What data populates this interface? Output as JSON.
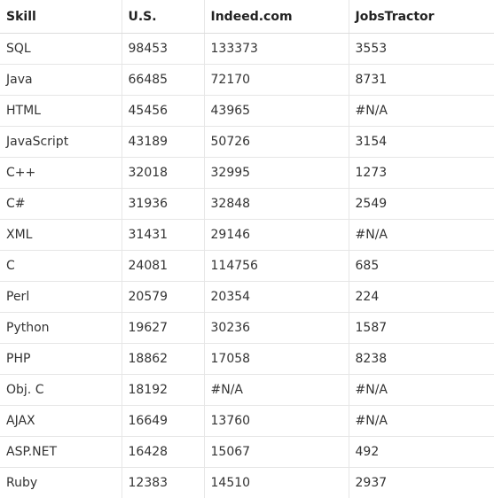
{
  "table": {
    "headers": [
      "Skill",
      "U.S.",
      "Indeed.com",
      "JobsTractor"
    ],
    "rows": [
      [
        "SQL",
        "98453",
        "133373",
        "3553"
      ],
      [
        "Java",
        "66485",
        "72170",
        "8731"
      ],
      [
        "HTML",
        "45456",
        "43965",
        "#N/A"
      ],
      [
        "JavaScript",
        "43189",
        "50726",
        "3154"
      ],
      [
        "C++",
        "32018",
        "32995",
        "1273"
      ],
      [
        "C#",
        "31936",
        "32848",
        "2549"
      ],
      [
        "XML",
        "31431",
        "29146",
        "#N/A"
      ],
      [
        "C",
        "24081",
        "114756",
        "685"
      ],
      [
        "Perl",
        "20579",
        "20354",
        "224"
      ],
      [
        "Python",
        "19627",
        "30236",
        "1587"
      ],
      [
        "PHP",
        "18862",
        "17058",
        "8238"
      ],
      [
        "Obj. C",
        "18192",
        "#N/A",
        "#N/A"
      ],
      [
        "AJAX",
        "16649",
        "13760",
        "#N/A"
      ],
      [
        "ASP.NET",
        "16428",
        "15067",
        "492"
      ],
      [
        "Ruby",
        "12383",
        "14510",
        "2937"
      ]
    ]
  }
}
